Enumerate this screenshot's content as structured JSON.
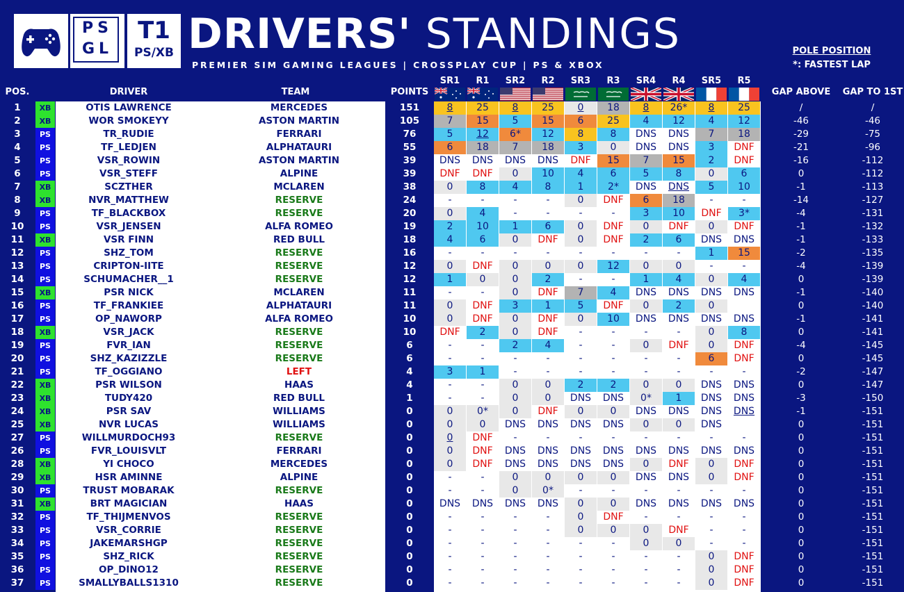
{
  "header": {
    "logo1_icon": "gamepad-icon",
    "logo2_text": "PS GL",
    "logo3_tier": "T1",
    "logo3_platform": "PS/XB",
    "title_bold": "DRIVERS'",
    "title_light": "STANDINGS",
    "subtitle": "PREMIER SIM GAMING LEAGUES | CROSSPLAY CUP | PS & XBOX",
    "pole_label": "POLE POSITION",
    "fastest_label": "*: FASTEST LAP"
  },
  "columns": {
    "pos": "POS.",
    "driver": "DRIVER",
    "team": "TEAM",
    "points": "POINTS",
    "gap_above": "GAP ABOVE",
    "gap_first": "GAP TO 1ST"
  },
  "races": [
    {
      "label": "SR1",
      "flag": "australia-flag-icon"
    },
    {
      "label": "R1",
      "flag": "australia-flag-icon"
    },
    {
      "label": "SR2",
      "flag": "usa-flag-icon"
    },
    {
      "label": "R2",
      "flag": "usa-flag-icon"
    },
    {
      "label": "SR3",
      "flag": "saudi-arabia-flag-icon"
    },
    {
      "label": "R3",
      "flag": "saudi-arabia-flag-icon"
    },
    {
      "label": "SR4",
      "flag": "uk-flag-icon"
    },
    {
      "label": "R4",
      "flag": "uk-flag-icon"
    },
    {
      "label": "SR5",
      "flag": "france-flag-icon"
    },
    {
      "label": "R5",
      "flag": "france-flag-icon"
    }
  ],
  "colors": {
    "background": "#0a1680",
    "gold": "#f9c31f",
    "silver": "#b3b3b3",
    "bronze": "#f08a3c",
    "points": "#4fc8f0",
    "zero": "#e8e8e8",
    "xbox": "#2ee22e",
    "playstation": "#1010e0",
    "team_text": "#0a1680",
    "reserve_text": "#1a7a1a",
    "left_text": "#e01010",
    "dnf_text": "#e01010"
  },
  "rows": [
    {
      "pos": "1",
      "plat": "XB",
      "driver": "OTIS LAWRENCE",
      "team": "MERCEDES",
      "points": "151",
      "results": [
        "8",
        "25",
        "8",
        "25",
        "0",
        "18",
        "8",
        "26*",
        "8",
        "25"
      ],
      "pole": [
        0,
        2,
        4,
        6,
        8
      ],
      "gap_above": "/",
      "gap_first": "/"
    },
    {
      "pos": "2",
      "plat": "XB",
      "driver": "WOR SMOKEYY",
      "team": "ASTON MARTIN",
      "points": "105",
      "results": [
        "7",
        "15",
        "5",
        "15",
        "6",
        "25",
        "4",
        "12",
        "4",
        "12"
      ],
      "pole": [],
      "gap_above": "-46",
      "gap_first": "-46"
    },
    {
      "pos": "3",
      "plat": "PS",
      "driver": "TR_RUDIE",
      "team": "FERRARI",
      "points": "76",
      "results": [
        "5",
        "12",
        "6*",
        "12",
        "8",
        "8",
        "DNS",
        "DNS",
        "7",
        "18"
      ],
      "pole": [
        1
      ],
      "gap_above": "-29",
      "gap_first": "-75"
    },
    {
      "pos": "4",
      "plat": "PS",
      "driver": "TF_LEDJEN",
      "team": "ALPHATAURI",
      "points": "55",
      "results": [
        "6",
        "18",
        "7",
        "18",
        "3",
        "0",
        "DNS",
        "DNS",
        "3",
        "DNF"
      ],
      "pole": [],
      "gap_above": "-21",
      "gap_first": "-96"
    },
    {
      "pos": "5",
      "plat": "PS",
      "driver": "VSR_ROWIN",
      "team": "ASTON MARTIN",
      "points": "39",
      "results": [
        "DNS",
        "DNS",
        "DNS",
        "DNS",
        "DNF",
        "15",
        "7",
        "15",
        "2",
        "DNF"
      ],
      "pole": [],
      "gap_above": "-16",
      "gap_first": "-112"
    },
    {
      "pos": "6",
      "plat": "PS",
      "driver": "VSR_STEFF",
      "team": "ALPINE",
      "points": "39",
      "results": [
        "DNF",
        "DNF",
        "0",
        "10",
        "4",
        "6",
        "5",
        "8",
        "0",
        "6"
      ],
      "pole": [],
      "gap_above": "0",
      "gap_first": "-112"
    },
    {
      "pos": "7",
      "plat": "XB",
      "driver": "SCZTHER",
      "team": "MCLAREN",
      "points": "38",
      "results": [
        "0",
        "8",
        "4",
        "8",
        "1",
        "2*",
        "DNS",
        "DNS",
        "5",
        "10"
      ],
      "pole": [
        7
      ],
      "gap_above": "-1",
      "gap_first": "-113"
    },
    {
      "pos": "8",
      "plat": "XB",
      "driver": "NVR_MATTHEW",
      "team": "RESERVE",
      "points": "24",
      "results": [
        "-",
        "-",
        "-",
        "-",
        "0",
        "DNF",
        "6",
        "18",
        "-",
        "-"
      ],
      "pole": [],
      "gap_above": "-14",
      "gap_first": "-127"
    },
    {
      "pos": "9",
      "plat": "PS",
      "driver": "TF_BLACKBOX",
      "team": "RESERVE",
      "points": "20",
      "results": [
        "0",
        "4",
        "-",
        "-",
        "-",
        "-",
        "3",
        "10",
        "DNF",
        "3*"
      ],
      "pole": [],
      "gap_above": "-4",
      "gap_first": "-131"
    },
    {
      "pos": "10",
      "plat": "PS",
      "driver": "VSR_JENSEN",
      "team": "ALFA ROMEO",
      "points": "19",
      "results": [
        "2",
        "10",
        "1",
        "6",
        "0",
        "DNF",
        "0",
        "DNF",
        "0",
        "DNF"
      ],
      "pole": [],
      "gap_above": "-1",
      "gap_first": "-132"
    },
    {
      "pos": "11",
      "plat": "XB",
      "driver": "VSR FINN",
      "team": "RED BULL",
      "points": "18",
      "results": [
        "4",
        "6",
        "0",
        "DNF",
        "0",
        "DNF",
        "2",
        "6",
        "DNS",
        "DNS"
      ],
      "pole": [],
      "gap_above": "-1",
      "gap_first": "-133"
    },
    {
      "pos": "12",
      "plat": "PS",
      "driver": "SHZ_TOM",
      "team": "RESERVE",
      "points": "16",
      "results": [
        "-",
        "-",
        "-",
        "-",
        "-",
        "-",
        "-",
        "-",
        "1",
        "15"
      ],
      "pole": [],
      "gap_above": "-2",
      "gap_first": "-135"
    },
    {
      "pos": "13",
      "plat": "PS",
      "driver": "CRIPTON-IITE",
      "team": "RESERVE",
      "points": "12",
      "results": [
        "0",
        "DNF",
        "0",
        "0",
        "0",
        "12",
        "0",
        "0",
        "-",
        "-"
      ],
      "pole": [],
      "gap_above": "-4",
      "gap_first": "-139"
    },
    {
      "pos": "14",
      "plat": "PS",
      "driver": "SCHUMACHER__1",
      "team": "RESERVE",
      "points": "12",
      "results": [
        "1",
        "0",
        "0",
        "2",
        "-",
        "-",
        "1",
        "4",
        "0",
        "4"
      ],
      "pole": [],
      "gap_above": "0",
      "gap_first": "-139"
    },
    {
      "pos": "15",
      "plat": "XB",
      "driver": "PSR NICK",
      "team": "MCLAREN",
      "points": "11",
      "results": [
        "-",
        "-",
        "0",
        "DNF",
        "7",
        "4",
        "DNS",
        "DNS",
        "DNS",
        "DNS"
      ],
      "pole": [],
      "gap_above": "-1",
      "gap_first": "-140"
    },
    {
      "pos": "16",
      "plat": "PS",
      "driver": "TF_FRANKIEE",
      "team": "ALPHATAURI",
      "points": "11",
      "results": [
        "0",
        "DNF",
        "3",
        "1",
        "5",
        "DNF",
        "0",
        "2",
        "0",
        ""
      ],
      "pole": [],
      "gap_above": "0",
      "gap_first": "-140"
    },
    {
      "pos": "17",
      "plat": "PS",
      "driver": "OP_NAWORP",
      "team": "ALFA ROMEO",
      "points": "10",
      "results": [
        "0",
        "DNF",
        "0",
        "DNF",
        "0",
        "10",
        "DNS",
        "DNS",
        "DNS",
        "DNS"
      ],
      "pole": [],
      "gap_above": "-1",
      "gap_first": "-141"
    },
    {
      "pos": "18",
      "plat": "XB",
      "driver": "VSR_JACK",
      "team": "RESERVE",
      "points": "10",
      "results": [
        "DNF",
        "2",
        "0",
        "DNF",
        "-",
        "-",
        "-",
        "-",
        "0",
        "8"
      ],
      "pole": [],
      "gap_above": "0",
      "gap_first": "-141"
    },
    {
      "pos": "19",
      "plat": "PS",
      "driver": "FVR_IAN",
      "team": "RESERVE",
      "points": "6",
      "results": [
        "-",
        "-",
        "2",
        "4",
        "-",
        "-",
        "0",
        "DNF",
        "0",
        "DNF"
      ],
      "pole": [],
      "gap_above": "-4",
      "gap_first": "-145"
    },
    {
      "pos": "20",
      "plat": "PS",
      "driver": "SHZ_KAZIZZLE",
      "team": "RESERVE",
      "points": "6",
      "results": [
        "-",
        "-",
        "-",
        "-",
        "-",
        "-",
        "-",
        "-",
        "6",
        "DNF"
      ],
      "pole": [],
      "gap_above": "0",
      "gap_first": "-145"
    },
    {
      "pos": "21",
      "plat": "PS",
      "driver": "TF_OGGIANO",
      "team": "LEFT",
      "points": "4",
      "results": [
        "3",
        "1",
        "-",
        "-",
        "-",
        "-",
        "-",
        "-",
        "-",
        "-"
      ],
      "pole": [],
      "gap_above": "-2",
      "gap_first": "-147"
    },
    {
      "pos": "22",
      "plat": "XB",
      "driver": "PSR WILSON",
      "team": "HAAS",
      "points": "4",
      "results": [
        "-",
        "-",
        "0",
        "0",
        "2",
        "2",
        "0",
        "0",
        "DNS",
        "DNS"
      ],
      "pole": [],
      "gap_above": "0",
      "gap_first": "-147"
    },
    {
      "pos": "23",
      "plat": "XB",
      "driver": "TUDY420",
      "team": "RED BULL",
      "points": "1",
      "results": [
        "-",
        "-",
        "0",
        "0",
        "DNS",
        "DNS",
        "0*",
        "1",
        "DNS",
        "DNS"
      ],
      "pole": [],
      "gap_above": "-3",
      "gap_first": "-150"
    },
    {
      "pos": "24",
      "plat": "XB",
      "driver": "PSR SAV",
      "team": "WILLIAMS",
      "points": "0",
      "results": [
        "0",
        "0*",
        "0",
        "DNF",
        "0",
        "0",
        "DNS",
        "DNS",
        "DNS",
        "DNS"
      ],
      "pole": [
        9
      ],
      "gap_above": "-1",
      "gap_first": "-151"
    },
    {
      "pos": "25",
      "plat": "XB",
      "driver": "NVR LUCAS",
      "team": "WILLIAMS",
      "points": "0",
      "results": [
        "0",
        "0",
        "DNS",
        "DNS",
        "DNS",
        "DNS",
        "0",
        "0",
        "DNS",
        ""
      ],
      "pole": [],
      "gap_above": "0",
      "gap_first": "-151"
    },
    {
      "pos": "27",
      "plat": "PS",
      "driver": "WILLMURDOCH93",
      "team": "RESERVE",
      "points": "0",
      "results": [
        "0",
        "DNF",
        "-",
        "-",
        "-",
        "-",
        "-",
        "-",
        "-",
        "-"
      ],
      "pole": [
        0
      ],
      "gap_above": "0",
      "gap_first": "-151"
    },
    {
      "pos": "26",
      "plat": "PS",
      "driver": "FVR_LOUISVLT",
      "team": "FERRARI",
      "points": "0",
      "results": [
        "0",
        "DNF",
        "DNS",
        "DNS",
        "DNS",
        "DNS",
        "DNS",
        "DNS",
        "DNS",
        "DNS"
      ],
      "pole": [],
      "gap_above": "0",
      "gap_first": "-151"
    },
    {
      "pos": "28",
      "plat": "XB",
      "driver": "YI CHOCO",
      "team": "MERCEDES",
      "points": "0",
      "results": [
        "0",
        "DNF",
        "DNS",
        "DNS",
        "DNS",
        "DNS",
        "0",
        "DNF",
        "0",
        "DNF"
      ],
      "pole": [],
      "gap_above": "0",
      "gap_first": "-151"
    },
    {
      "pos": "29",
      "plat": "XB",
      "driver": "HSR AMINNE",
      "team": "ALPINE",
      "points": "0",
      "results": [
        "-",
        "-",
        "0",
        "0",
        "0",
        "0",
        "DNS",
        "DNS",
        "0",
        "DNF"
      ],
      "pole": [],
      "gap_above": "0",
      "gap_first": "-151"
    },
    {
      "pos": "30",
      "plat": "PS",
      "driver": "TRUST MOBARAK",
      "team": "RESERVE",
      "points": "0",
      "results": [
        "-",
        "-",
        "0",
        "0*",
        "-",
        "-",
        "-",
        "-",
        "-",
        "-"
      ],
      "pole": [],
      "gap_above": "0",
      "gap_first": "-151"
    },
    {
      "pos": "31",
      "plat": "XB",
      "driver": "BRT MAGICIAN",
      "team": "HAAS",
      "points": "0",
      "results": [
        "DNS",
        "DNS",
        "DNS",
        "DNS",
        "0",
        "0",
        "DNS",
        "DNS",
        "DNS",
        "DNS"
      ],
      "pole": [],
      "gap_above": "0",
      "gap_first": "-151"
    },
    {
      "pos": "32",
      "plat": "PS",
      "driver": "TF_THIJMENVOS",
      "team": "RESERVE",
      "points": "0",
      "results": [
        "-",
        "-",
        "-",
        "-",
        "0",
        "DNF",
        "-",
        "-",
        "-",
        "-"
      ],
      "pole": [],
      "gap_above": "0",
      "gap_first": "-151"
    },
    {
      "pos": "33",
      "plat": "PS",
      "driver": "VSR_CORRIE",
      "team": "RESERVE",
      "points": "0",
      "results": [
        "-",
        "-",
        "-",
        "-",
        "0",
        "0",
        "0",
        "DNF",
        "-",
        "-"
      ],
      "pole": [],
      "gap_above": "0",
      "gap_first": "-151"
    },
    {
      "pos": "34",
      "plat": "PS",
      "driver": "JAKEMARSHGP",
      "team": "RESERVE",
      "points": "0",
      "results": [
        "-",
        "-",
        "-",
        "-",
        "-",
        "-",
        "0",
        "0",
        "-",
        "-"
      ],
      "pole": [],
      "gap_above": "0",
      "gap_first": "-151"
    },
    {
      "pos": "35",
      "plat": "PS",
      "driver": "SHZ_RICK",
      "team": "RESERVE",
      "points": "0",
      "results": [
        "-",
        "-",
        "-",
        "-",
        "-",
        "-",
        "-",
        "-",
        "0",
        "DNF"
      ],
      "pole": [],
      "gap_above": "0",
      "gap_first": "-151"
    },
    {
      "pos": "36",
      "plat": "PS",
      "driver": "OP_DINO12",
      "team": "RESERVE",
      "points": "0",
      "results": [
        "-",
        "-",
        "-",
        "-",
        "-",
        "-",
        "-",
        "-",
        "0",
        "DNF"
      ],
      "pole": [],
      "gap_above": "0",
      "gap_first": "-151"
    },
    {
      "pos": "37",
      "plat": "PS",
      "driver": "SMALLYBALLS1310",
      "team": "RESERVE",
      "points": "0",
      "results": [
        "-",
        "-",
        "-",
        "-",
        "-",
        "-",
        "-",
        "-",
        "0",
        "DNF"
      ],
      "pole": [],
      "gap_above": "0",
      "gap_first": "-151"
    }
  ]
}
